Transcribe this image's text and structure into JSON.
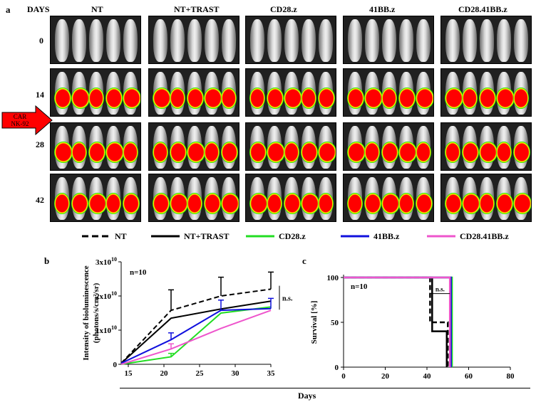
{
  "figure": {
    "panel_a_label": "a",
    "panel_b_label": "b",
    "panel_c_label": "c",
    "days_header": "DAYS",
    "groups": [
      "NT",
      "NT+TRAST",
      "CD28.z",
      "41BB.z",
      "CD28.41BB.z"
    ],
    "days": [
      "0",
      "14",
      "28",
      "42"
    ],
    "arrow_text": [
      "CAR",
      "NK-92"
    ],
    "legend": [
      {
        "label": "NT",
        "color": "#000000",
        "style": "dashed"
      },
      {
        "label": "NT+TRAST",
        "color": "#000000",
        "style": "solid"
      },
      {
        "label": "CD28.z",
        "color": "#22dd22",
        "style": "solid"
      },
      {
        "label": "41BB.z",
        "color": "#1010dd",
        "style": "solid"
      },
      {
        "label": "CD28.41BB.z",
        "color": "#ee55cc",
        "style": "solid"
      }
    ],
    "shared_xlabel": "Days"
  },
  "chart_data": [
    {
      "type": "line",
      "panel": "b",
      "annotation": "n=10",
      "significance": "n.s.",
      "ylabel": "Intensity of bioluminescence (photons/s/cm²/sr)",
      "xlim": [
        14,
        35
      ],
      "ylim": [
        0,
        3
      ],
      "xticks": [
        15,
        20,
        25,
        30,
        35
      ],
      "yticks": [
        {
          "v": 0,
          "base": "0",
          "exp": ""
        },
        {
          "v": 1,
          "base": "1x10",
          "exp": "10"
        },
        {
          "v": 2,
          "base": "2x10",
          "exp": "10"
        },
        {
          "v": 3,
          "base": "3x10",
          "exp": "10"
        }
      ],
      "series": [
        {
          "name": "NT",
          "color": "#000000",
          "dash": true,
          "x": [
            14,
            21,
            28,
            35
          ],
          "y": [
            0.03,
            1.58,
            2.0,
            2.2
          ],
          "err": [
            0,
            0.6,
            0.55,
            0.5
          ]
        },
        {
          "name": "NT+TRAST",
          "color": "#000000",
          "dash": false,
          "x": [
            14,
            21,
            28,
            35
          ],
          "y": [
            0.03,
            1.35,
            1.62,
            1.85
          ],
          "err": [
            0,
            0,
            0,
            0
          ]
        },
        {
          "name": "CD28.z",
          "color": "#22dd22",
          "dash": false,
          "x": [
            14,
            21,
            28,
            35
          ],
          "y": [
            0.0,
            0.22,
            1.5,
            1.68
          ],
          "err": [
            0,
            0.1,
            0,
            0
          ]
        },
        {
          "name": "41BB.z",
          "color": "#1010dd",
          "dash": false,
          "x": [
            14,
            21,
            28,
            35
          ],
          "y": [
            0.03,
            0.72,
            1.58,
            1.63
          ],
          "err": [
            0,
            0.2,
            0.3,
            0.3
          ]
        },
        {
          "name": "CD28.41BB.z",
          "color": "#ee55cc",
          "dash": false,
          "x": [
            14,
            21,
            28,
            35
          ],
          "y": [
            0.0,
            0.45,
            1.05,
            1.58
          ],
          "err": [
            0,
            0.15,
            0,
            0
          ]
        }
      ]
    },
    {
      "type": "line",
      "panel": "c",
      "annotation": "n=10",
      "significance": "n.s.",
      "ylabel": "Survival [%]",
      "xlim": [
        0,
        80
      ],
      "ylim": [
        0,
        100
      ],
      "xticks": [
        0,
        20,
        40,
        60,
        80
      ],
      "yticks": [
        0,
        50,
        100
      ],
      "series": [
        {
          "name": "NT",
          "color": "#000000",
          "dash": true,
          "steps": [
            [
              0,
              100
            ],
            [
              41.5,
              100
            ],
            [
              41.5,
              50
            ],
            [
              50,
              50
            ],
            [
              50,
              0
            ]
          ]
        },
        {
          "name": "NT+TRAST",
          "color": "#000000",
          "dash": false,
          "steps": [
            [
              0,
              100
            ],
            [
              42.5,
              100
            ],
            [
              42.5,
              40
            ],
            [
              49.5,
              40
            ],
            [
              49.5,
              0
            ]
          ]
        },
        {
          "name": "CD28.z",
          "color": "#22dd22",
          "dash": false,
          "steps": [
            [
              0,
              100
            ],
            [
              52,
              100
            ],
            [
              52,
              0
            ]
          ]
        },
        {
          "name": "41BB.z",
          "color": "#1010dd",
          "dash": false,
          "steps": [
            [
              0,
              100
            ],
            [
              51.5,
              100
            ],
            [
              51.5,
              0
            ]
          ]
        },
        {
          "name": "CD28.41BB.z",
          "color": "#ee55cc",
          "dash": false,
          "steps": [
            [
              0,
              100
            ],
            [
              51,
              100
            ],
            [
              51,
              0
            ]
          ]
        }
      ]
    }
  ]
}
